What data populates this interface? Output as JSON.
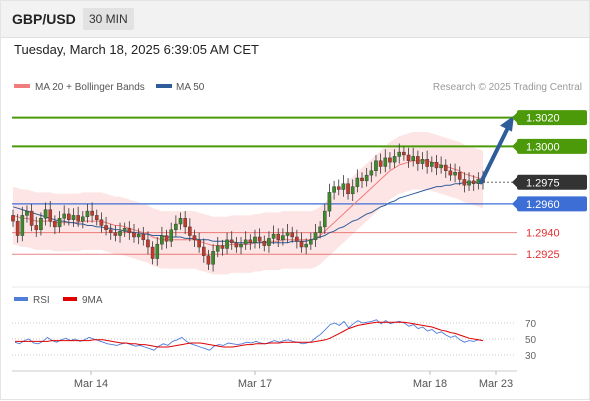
{
  "header": {
    "symbol": "GBP/USD",
    "interval": "30 MIN"
  },
  "timestamp": "Tuesday, March 18, 2025 6:39:05 AM CET",
  "legend": {
    "ma20": "MA 20 + Bollinger Bands",
    "ma50": "MA 50",
    "ma20_color": "#f07c7c",
    "ma50_color": "#2f5d9a"
  },
  "copyright": "Research © 2025 Trading Central",
  "rsi_legend": {
    "rsi": "RSI",
    "ma": "9MA",
    "rsi_color": "#4f7dd8",
    "ma_color": "#e00000"
  },
  "chart_data": {
    "type": "candlestick",
    "ylim": [
      1.2905,
      1.3035
    ],
    "x_ticks": [
      "Mar 14",
      "Mar 17",
      "Mar 18",
      "Mar 23"
    ],
    "levels": [
      {
        "value": 1.302,
        "label": "1.3020",
        "color": "#4c9a0a",
        "style": "box"
      },
      {
        "value": 1.3,
        "label": "1.3000",
        "color": "#4c9a0a",
        "style": "box"
      },
      {
        "value": 1.2975,
        "label": "1.2975",
        "color": "#333333",
        "style": "box"
      },
      {
        "value": 1.296,
        "label": "1.2960",
        "color": "#3c6ed6",
        "style": "box"
      },
      {
        "value": 1.294,
        "label": "1.2940",
        "color": "#e03030",
        "style": "text"
      },
      {
        "value": 1.2925,
        "label": "1.2925",
        "color": "#e03030",
        "style": "text"
      }
    ],
    "close": [
      1.2948,
      1.2938,
      1.2952,
      1.2955,
      1.2945,
      1.2942,
      1.295,
      1.2956,
      1.2948,
      1.2944,
      1.295,
      1.2953,
      1.2949,
      1.2952,
      1.2948,
      1.2951,
      1.2955,
      1.2952,
      1.2949,
      1.2945,
      1.2942,
      1.294,
      1.2938,
      1.2941,
      1.2943,
      1.294,
      1.2937,
      1.2939,
      1.2935,
      1.293,
      1.2922,
      1.2932,
      1.2938,
      1.2934,
      1.2942,
      1.2946,
      1.295,
      1.2944,
      1.2938,
      1.2935,
      1.293,
      1.2924,
      1.2918,
      1.2927,
      1.2931,
      1.2929,
      1.2935,
      1.2933,
      1.293,
      1.2932,
      1.2935,
      1.2933,
      1.2937,
      1.2934,
      1.2931,
      1.2936,
      1.2939,
      1.2935,
      1.2938,
      1.294,
      1.2937,
      1.2934,
      1.293,
      1.2932,
      1.2935,
      1.294,
      1.2944,
      1.2955,
      1.2968,
      1.2972,
      1.297,
      1.2974,
      1.2967,
      1.2972,
      1.2978,
      1.2976,
      1.298,
      1.2983,
      1.299,
      1.2986,
      1.2992,
      1.2989,
      1.2993,
      1.2996,
      1.2994,
      1.299,
      1.2993,
      1.2988,
      1.2991,
      1.2986,
      1.2989,
      1.2985,
      1.2987,
      1.2983,
      1.298,
      1.2982,
      1.2977,
      1.2973,
      1.2976,
      1.2974,
      1.2977,
      1.2975
    ],
    "ma20": [
      1.2952,
      1.2951,
      1.295,
      1.295,
      1.2949,
      1.2948,
      1.2948,
      1.2948,
      1.2948,
      1.2947,
      1.2947,
      1.2947,
      1.2947,
      1.2947,
      1.2947,
      1.2948,
      1.2948,
      1.2948,
      1.2948,
      1.2948,
      1.2947,
      1.2946,
      1.2945,
      1.2945,
      1.2944,
      1.2943,
      1.2942,
      1.2941,
      1.294,
      1.2939,
      1.2937,
      1.2936,
      1.2935,
      1.2935,
      1.2935,
      1.2935,
      1.2935,
      1.2935,
      1.2935,
      1.2935,
      1.2934,
      1.2933,
      1.2932,
      1.2931,
      1.2931,
      1.2931,
      1.2931,
      1.2932,
      1.2932,
      1.2932,
      1.2932,
      1.2932,
      1.2933,
      1.2933,
      1.2934,
      1.2934,
      1.2934,
      1.2934,
      1.2935,
      1.2935,
      1.2935,
      1.2935,
      1.2935,
      1.2935,
      1.2935,
      1.2936,
      1.2938,
      1.2941,
      1.2944,
      1.2947,
      1.295,
      1.2953,
      1.2956,
      1.2959,
      1.2962,
      1.2965,
      1.2968,
      1.2971,
      1.2974,
      1.2977,
      1.298,
      1.2983,
      1.2985,
      1.2987,
      1.2988,
      1.2989,
      1.299,
      1.299,
      1.299,
      1.299,
      1.2989,
      1.2988,
      1.2987,
      1.2986,
      1.2985,
      1.2984,
      1.2983,
      1.2981,
      1.298,
      1.2979,
      1.2978,
      1.2977
    ],
    "ma50": [
      1.2958,
      1.2957,
      1.2956,
      1.2955,
      1.2954,
      1.2953,
      1.2952,
      1.2951,
      1.295,
      1.2949,
      1.2948,
      1.2948,
      1.2947,
      1.2947,
      1.2946,
      1.2946,
      1.2945,
      1.2945,
      1.2944,
      1.2944,
      1.2943,
      1.2943,
      1.2942,
      1.2942,
      1.2941,
      1.2941,
      1.294,
      1.294,
      1.2939,
      1.2939,
      1.2938,
      1.2938,
      1.2938,
      1.2937,
      1.2937,
      1.2937,
      1.2937,
      1.2936,
      1.2936,
      1.2936,
      1.2935,
      1.2935,
      1.2935,
      1.2934,
      1.2934,
      1.2934,
      1.2934,
      1.2934,
      1.2933,
      1.2933,
      1.2933,
      1.2933,
      1.2933,
      1.2933,
      1.2933,
      1.2933,
      1.2933,
      1.2933,
      1.2933,
      1.2933,
      1.2934,
      1.2934,
      1.2934,
      1.2934,
      1.2935,
      1.2936,
      1.2937,
      1.2938,
      1.294,
      1.2941,
      1.2943,
      1.2944,
      1.2946,
      1.2948,
      1.2949,
      1.2951,
      1.2953,
      1.2954,
      1.2956,
      1.2958,
      1.2959,
      1.2961,
      1.2962,
      1.2964,
      1.2965,
      1.2966,
      1.2967,
      1.2968,
      1.2969,
      1.297,
      1.2971,
      1.2972,
      1.2972,
      1.2973,
      1.2973,
      1.2974,
      1.2974,
      1.2975,
      1.2975,
      1.2975,
      1.2975,
      1.2976
    ],
    "bb_width": 0.002,
    "rsi": {
      "ylim": [
        20,
        80
      ],
      "ticks": [
        70,
        50,
        30
      ],
      "values": [
        46,
        44,
        48,
        50,
        45,
        44,
        47,
        52,
        48,
        46,
        49,
        51,
        48,
        50,
        47,
        49,
        52,
        50,
        48,
        46,
        44,
        43,
        42,
        44,
        45,
        43,
        41,
        42,
        40,
        38,
        36,
        41,
        44,
        42,
        47,
        49,
        52,
        47,
        44,
        42,
        40,
        38,
        36,
        41,
        43,
        42,
        45,
        44,
        43,
        44,
        46,
        45,
        47,
        45,
        44,
        46,
        48,
        46,
        48,
        49,
        47,
        46,
        44,
        45,
        47,
        52,
        56,
        62,
        68,
        70,
        67,
        72,
        64,
        69,
        73,
        70,
        71,
        72,
        74,
        69,
        73,
        69,
        71,
        72,
        70,
        66,
        68,
        63,
        65,
        60,
        62,
        57,
        59,
        55,
        52,
        54,
        49,
        46,
        48,
        47,
        49,
        48
      ],
      "ma": [
        47,
        47,
        47,
        47,
        47,
        47,
        47,
        47,
        48,
        48,
        48,
        48,
        48,
        48,
        48,
        48,
        48,
        49,
        49,
        49,
        48,
        47,
        46,
        45,
        45,
        44,
        44,
        43,
        43,
        42,
        41,
        40,
        40,
        40,
        41,
        42,
        43,
        44,
        45,
        45,
        45,
        44,
        43,
        42,
        41,
        40,
        40,
        40,
        41,
        42,
        43,
        43,
        44,
        44,
        44,
        45,
        45,
        45,
        46,
        46,
        46,
        46,
        46,
        46,
        46,
        47,
        48,
        49,
        51,
        54,
        57,
        60,
        63,
        65,
        67,
        68,
        69,
        70,
        71,
        71,
        71,
        71,
        71,
        71,
        71,
        70,
        69,
        68,
        67,
        66,
        65,
        63,
        61,
        60,
        58,
        57,
        55,
        53,
        51,
        50,
        49,
        48
      ]
    }
  }
}
